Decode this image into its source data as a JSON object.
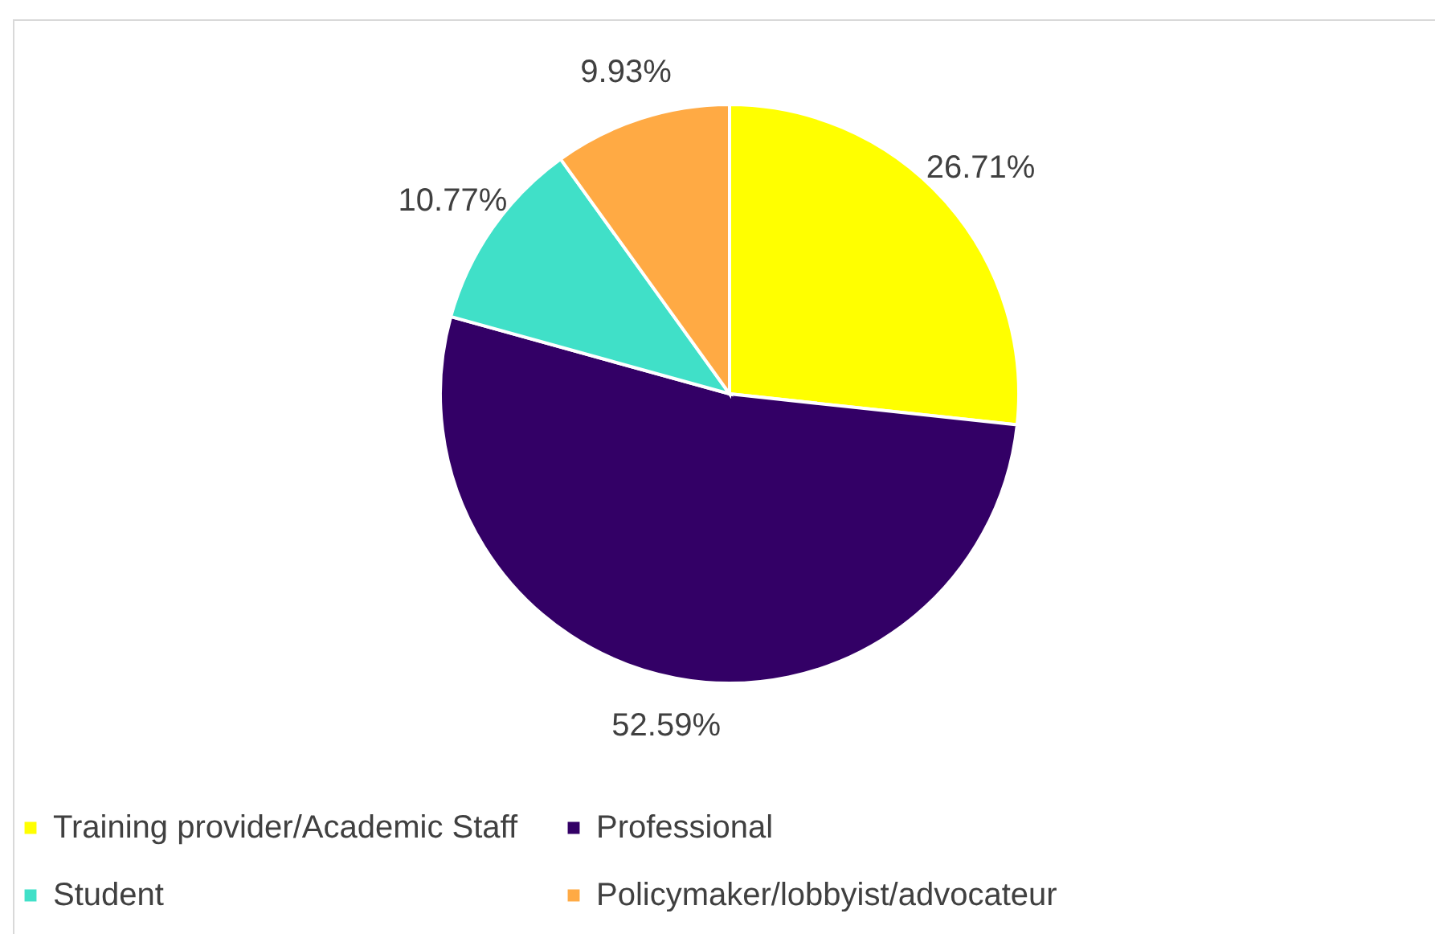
{
  "chart_data": {
    "type": "pie",
    "categories": [
      "Training provider/Academic Staff",
      "Professional",
      "Student",
      "Policymaker/lobbyist/advocateur"
    ],
    "values": [
      26.71,
      52.59,
      10.77,
      9.93
    ],
    "colors": [
      "#ffff00",
      "#330066",
      "#40e0c8",
      "#ffaa44"
    ],
    "value_labels": [
      "26.71%",
      "52.59%",
      "10.77%",
      "9.93%"
    ],
    "legend": "bottom"
  }
}
